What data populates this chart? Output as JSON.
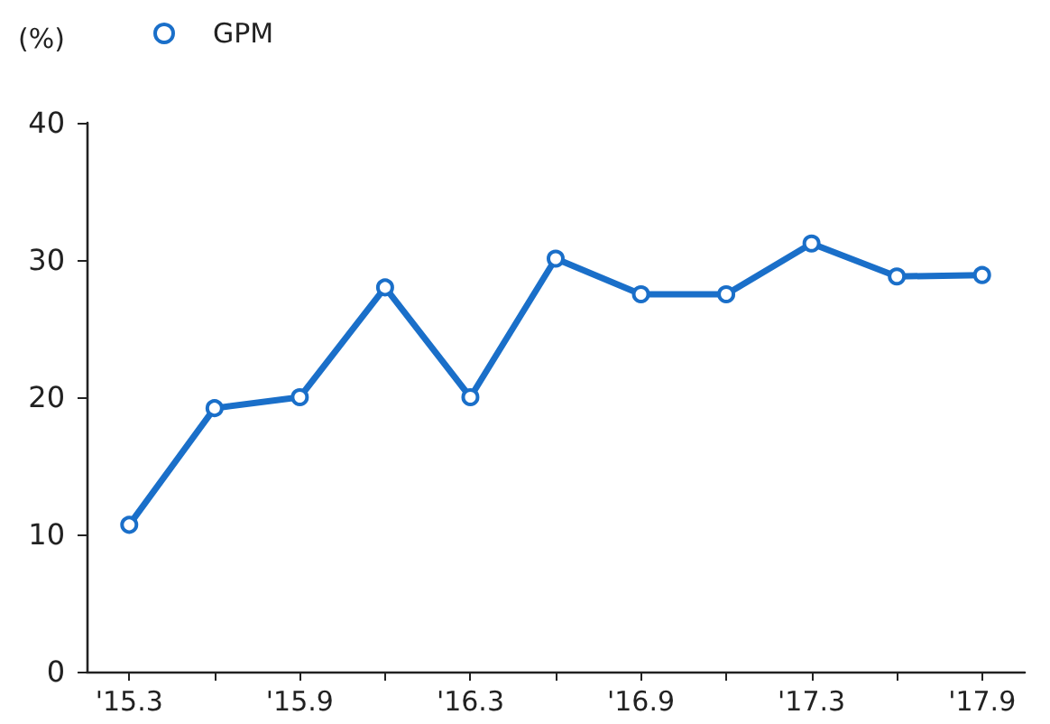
{
  "chart_data": {
    "type": "line",
    "ylabel": "(%)",
    "categories": [
      "'15.3",
      null,
      "'15.9",
      null,
      "'16.3",
      null,
      "'16.9",
      null,
      "'17.3",
      null,
      "'17.9"
    ],
    "series": [
      {
        "name": "GPM",
        "color": "#1a6fc9",
        "values": [
          10.7,
          19.2,
          20.0,
          28.0,
          20.0,
          30.1,
          27.5,
          27.5,
          31.2,
          28.8,
          28.9
        ]
      }
    ],
    "ylim": [
      0,
      40
    ],
    "yticks": [
      0,
      10,
      20,
      30,
      40
    ],
    "grid": false,
    "legend": "top left",
    "marker": "circle",
    "line_style": "solid"
  }
}
